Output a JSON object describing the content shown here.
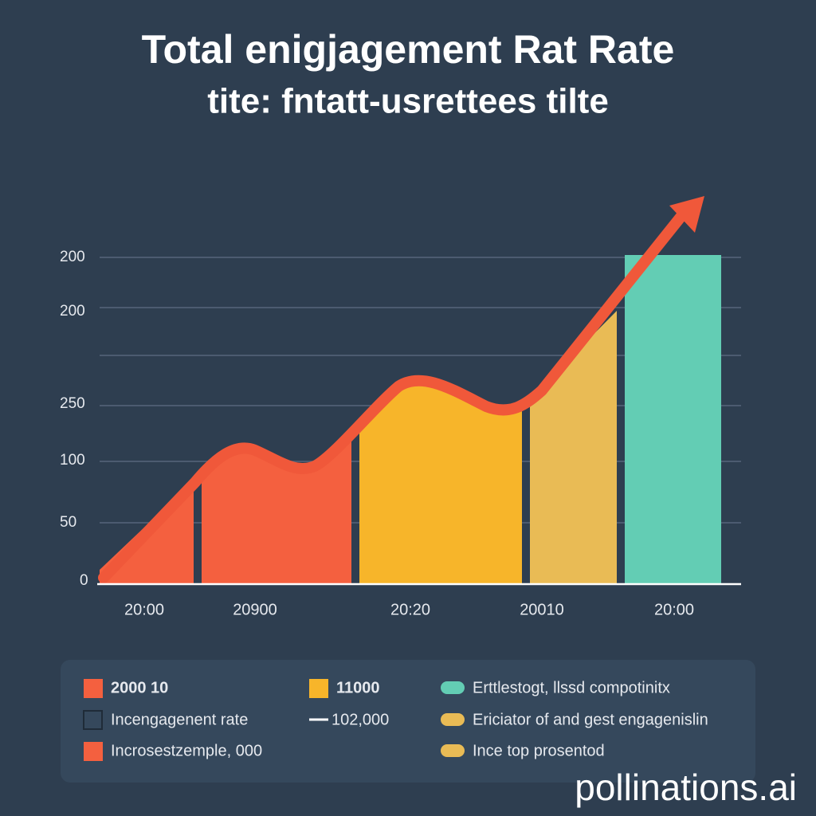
{
  "title": "Total enigjagement Rat Rate",
  "subtitle": "tite: fntatt-usrettees tilte",
  "y_labels": [
    "200",
    "200",
    "250",
    "100",
    "50",
    "0"
  ],
  "x_labels": [
    "20:00",
    "20900",
    "20:20",
    "20010",
    "20:00"
  ],
  "legend": [
    {
      "label": "2000 10",
      "color": "#f4603f",
      "marker": "square"
    },
    {
      "label": "11000",
      "color": "#f7b52a",
      "marker": "square"
    },
    {
      "label": "Erttlestogt, llssd compotinitx",
      "color": "#63cdb4",
      "marker": "pill"
    },
    {
      "label": "Incengagenent rate",
      "color": "none",
      "marker": "outline"
    },
    {
      "label": "102,000",
      "color": "#ffffff",
      "marker": "line"
    },
    {
      "label": "Ericiator of and gest engagenislin",
      "color": "#e9bb55",
      "marker": "pill"
    },
    {
      "label": "Incrosestzemple, 000",
      "color": "#f4603f",
      "marker": "square"
    },
    {
      "label": "Ince top prosentod",
      "color": "#e9bb55",
      "marker": "pill"
    }
  ],
  "watermark": "pollinations.ai"
}
